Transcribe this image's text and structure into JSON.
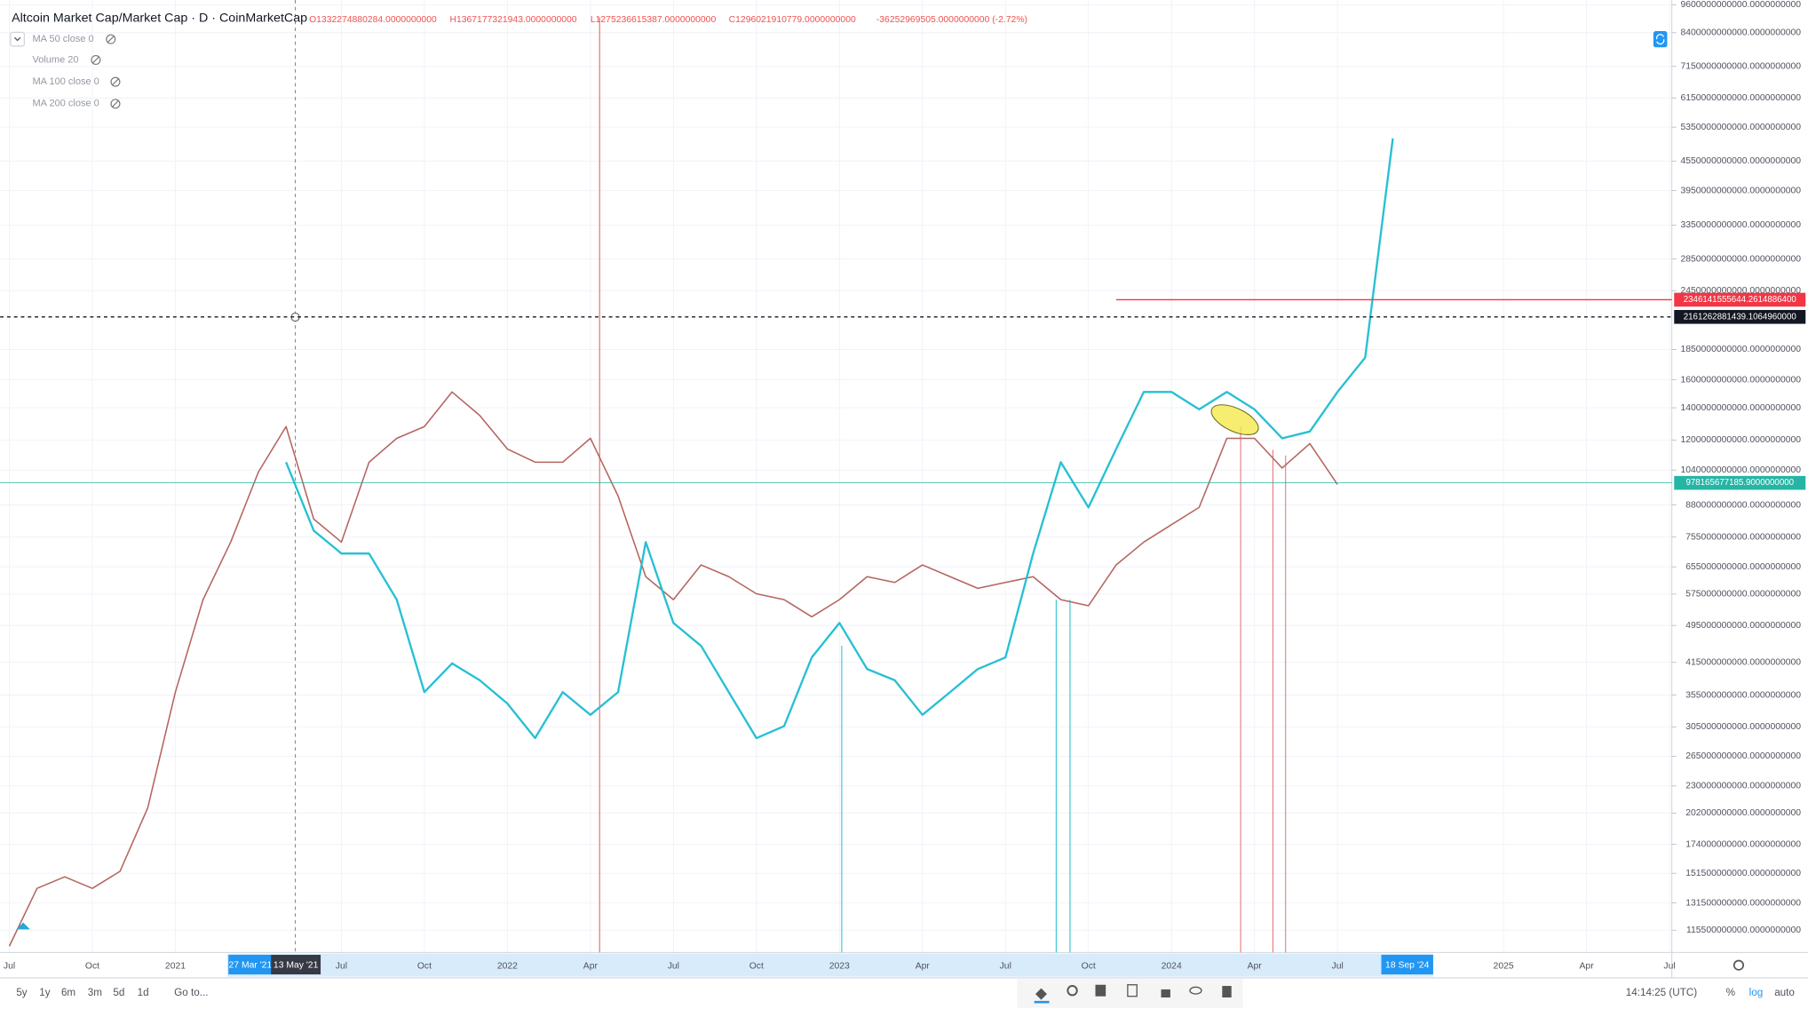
{
  "chart_data": {
    "type": "line",
    "title": "Altcoin Market Cap/Market Cap · D · CoinMarketCap",
    "ohlc": [
      "O1332274880284.0000000000",
      "H1367177321943.0000000000",
      "L1275236615387.0000000000",
      "C1296021910779.0000000000",
      "-36252969505.0000000000 (-2.72%)"
    ],
    "categories": [
      "Jul",
      null,
      null,
      "Oct",
      null,
      null,
      "2021",
      null,
      null,
      null,
      null,
      null,
      "Jul",
      null,
      null,
      "Oct",
      null,
      null,
      "2022",
      null,
      null,
      "Apr",
      null,
      null,
      "Jul",
      null,
      null,
      "Oct",
      null,
      null,
      "2023",
      null,
      null,
      "Apr",
      null,
      null,
      "Jul",
      null,
      null,
      "Oct",
      null,
      null,
      "2024",
      null,
      null,
      "Apr",
      null,
      null,
      "Jul",
      null,
      null,
      null,
      null,
      null,
      "2025",
      null,
      null,
      "Apr",
      null,
      null,
      "Jul"
    ],
    "series": [
      {
        "color": "#b5655f",
        "values": [
          107000000000.0,
          141000000000.0,
          149000000000.0,
          141000000000.0,
          153000000000.0,
          207000000000.0,
          360000000000.0,
          560000000000.0,
          737000000000.0,
          1030000000000.0,
          1280000000000.0,
          823000000000.0,
          737000000000.0,
          1080000000000.0,
          1210000000000.0,
          1280000000000.0,
          1510000000000.0,
          1350000000000.0,
          1150000000000.0,
          1080000000000.0,
          1080000000000.0,
          1210000000000.0,
          919000000000.0,
          625000000000.0,
          560000000000.0,
          661000000000.0,
          625000000000.0,
          576000000000.0,
          560000000000.0,
          516000000000.0,
          560000000000.0,
          625000000000.0,
          608000000000.0,
          661000000000.0,
          625000000000.0,
          591000000000.0,
          608000000000.0,
          625000000000.0,
          560000000000.0,
          544000000000.0,
          661000000000.0,
          737000000000.0,
          801000000000.0,
          870000000000.0,
          1210000000000.0,
          1210000000000.0,
          1050000000000.0,
          1180000000000.0,
          971000000000.0,
          null,
          null,
          null,
          null,
          null,
          null,
          null,
          null,
          null,
          null,
          null,
          null
        ]
      },
      {
        "color": "#26c0d3",
        "values": [
          null,
          null,
          null,
          null,
          null,
          null,
          null,
          null,
          null,
          null,
          1080000000000.0,
          779000000000.0,
          698000000000.0,
          698000000000.0,
          560000000000.0,
          360000000000.0,
          413000000000.0,
          381000000000.0,
          341000000000.0,
          289000000000.0,
          360000000000.0,
          323000000000.0,
          360000000000.0,
          737000000000.0,
          501000000000.0,
          449000000000.0,
          360000000000.0,
          289000000000.0,
          306000000000.0,
          425000000000.0,
          501000000000.0,
          402000000000.0,
          381000000000.0,
          323000000000.0,
          360000000000.0,
          402000000000.0,
          425000000000.0,
          698000000000.0,
          1080000000000.0,
          870000000000.0,
          1150000000000.0,
          1510000000000.0,
          1510000000000.0,
          1390000000000.0,
          1510000000000.0,
          1390000000000.0,
          1210000000000.0,
          1250000000000.0,
          1510000000000.0,
          1780000000000.0,
          5070000000000.0,
          null,
          null,
          null,
          null,
          null,
          null,
          null,
          null,
          null,
          null
        ]
      }
    ],
    "log_scale": true,
    "grid": true,
    "ylim": [
      103800000000,
      9820000000000
    ],
    "yticks": [
      {
        "value": 9600000000000,
        "label": "9600000000000.0000000000"
      },
      {
        "value": 8400000000000,
        "label": "8400000000000.0000000000"
      },
      {
        "value": 7150000000000,
        "label": "7150000000000.0000000000"
      },
      {
        "value": 6150000000000,
        "label": "6150000000000.0000000000"
      },
      {
        "value": 5350000000000,
        "label": "5350000000000.0000000000"
      },
      {
        "value": 4550000000000,
        "label": "4550000000000.0000000000"
      },
      {
        "value": 3950000000000,
        "label": "3950000000000.0000000000"
      },
      {
        "value": 3350000000000,
        "label": "3350000000000.0000000000"
      },
      {
        "value": 2850000000000,
        "label": "2850000000000.0000000000"
      },
      {
        "value": 2450000000000,
        "label": "2450000000000.0000000000"
      },
      {
        "value": 1850000000000,
        "label": "1850000000000.0000000000"
      },
      {
        "value": 1600000000000,
        "label": "1600000000000.0000000000"
      },
      {
        "value": 1400000000000,
        "label": "1400000000000.0000000000"
      },
      {
        "value": 1200000000000,
        "label": "1200000000000.0000000000"
      },
      {
        "value": 1040000000000,
        "label": "1040000000000.0000000000"
      },
      {
        "value": 880000000000,
        "label": "880000000000.0000000000"
      },
      {
        "value": 755000000000,
        "label": "755000000000.0000000000"
      },
      {
        "value": 655000000000,
        "label": "655000000000.0000000000"
      },
      {
        "value": 575000000000,
        "label": "575000000000.0000000000"
      },
      {
        "value": 495000000000,
        "label": "495000000000.0000000000"
      },
      {
        "value": 415000000000,
        "label": "415000000000.0000000000"
      },
      {
        "value": 355000000000,
        "label": "355000000000.0000000000"
      },
      {
        "value": 305000000000,
        "label": "305000000000.0000000000"
      },
      {
        "value": 265000000000,
        "label": "265000000000.0000000000"
      },
      {
        "value": 230000000000,
        "label": "230000000000.0000000000"
      },
      {
        "value": 202000000000,
        "label": "202000000000.0000000000"
      },
      {
        "value": 174000000000,
        "label": "174000000000.0000000000"
      },
      {
        "value": 151500000000,
        "label": "151500000000.0000000000"
      },
      {
        "value": 131500000000,
        "label": "131500000000.0000000000"
      },
      {
        "value": 115500000000,
        "label": "115500000000.0000000000"
      }
    ],
    "price_lines": [
      {
        "value": 2346141555644.261,
        "label": "2346141555644.2614886400",
        "color": "#f23645",
        "style": "solid"
      },
      {
        "value": 2161262881439.1064,
        "label": "2161262881439.1064960000",
        "color": "#131722",
        "style": "dashed"
      },
      {
        "value": 978165677185.9,
        "label": "978165677185.9000000000",
        "color": "#26b5a5",
        "style": "solid"
      }
    ],
    "annotations": [
      "27 Mar '21",
      "13 May '21",
      "18 Sep '24"
    ]
  },
  "ui": {
    "indicators": [
      "MA 50 close 0",
      "Volume 20",
      "MA 100 close 0",
      "MA 200 close 0"
    ],
    "ranges": [
      "5y",
      "1y",
      "6m",
      "3m",
      "5d",
      "1d"
    ],
    "goto": "Go to...",
    "clock": "14:14:25 (UTC)",
    "scale_buttons": [
      "%",
      "log",
      "auto"
    ]
  }
}
